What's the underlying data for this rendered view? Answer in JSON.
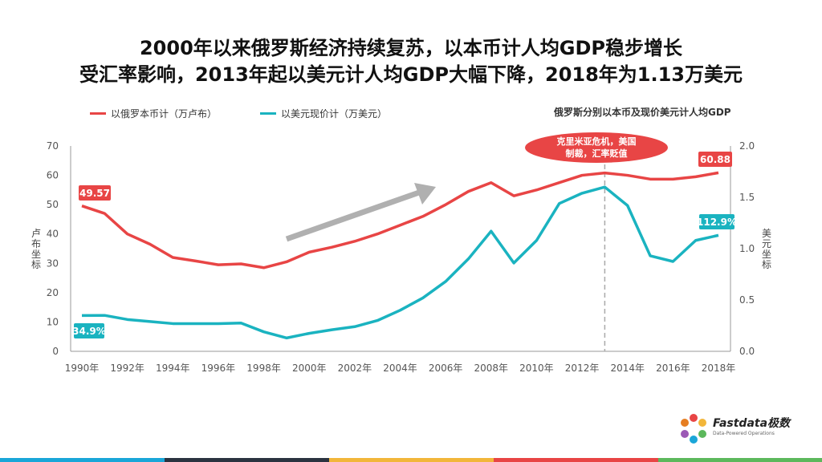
{
  "header": {
    "title_line1": "2000年以来俄罗斯经济持续复苏，以本币计人均GDP稳步增长",
    "title_line2": "受汇率影响，2013年起以美元计人均GDP大幅下降，2018年为1.13万美元"
  },
  "legend": {
    "series1": "以俄罗本币计（万卢布）",
    "series2": "以美元现价计（万美元）"
  },
  "chart_title": "俄罗斯分别以本币及现价美元计人均GDP",
  "left_axis_title": "卢布坐标",
  "right_axis_title": "美元坐标",
  "annotation": {
    "line1": "克里米亚危机，美国",
    "line2": "制裁，汇率贬值"
  },
  "colors": {
    "series1": "#e84545",
    "series2": "#1ab3c0",
    "arrow": "#b0b0b0",
    "annotation_bg": "#e84545",
    "bar": [
      "#1aa6d8",
      "#2b3340",
      "#f2b63a",
      "#e84545",
      "#5cb85c"
    ]
  },
  "logo": {
    "name": "Fastdata极数",
    "tagline": "Data-Powered Operations"
  },
  "chart_data": {
    "type": "line",
    "x": [
      1990,
      1991,
      1992,
      1993,
      1994,
      1995,
      1996,
      1997,
      1998,
      1999,
      2000,
      2001,
      2002,
      2003,
      2004,
      2005,
      2006,
      2007,
      2008,
      2009,
      2010,
      2011,
      2012,
      2013,
      2014,
      2015,
      2016,
      2017,
      2018
    ],
    "x_tick_labels": [
      "1990年",
      "1992年",
      "1994年",
      "1996年",
      "1998年",
      "2000年",
      "2002年",
      "2004年",
      "2006年",
      "2008年",
      "2010年",
      "2012年",
      "2014年",
      "2016年",
      "2018年"
    ],
    "x_tick_values": [
      1990,
      1992,
      1994,
      1996,
      1998,
      2000,
      2002,
      2004,
      2006,
      2008,
      2010,
      2012,
      2014,
      2016,
      2018
    ],
    "y_left": {
      "min": 0,
      "max": 70,
      "ticks": [
        "0",
        "10",
        "20",
        "30",
        "40",
        "50",
        "60",
        "70"
      ],
      "tick_values": [
        0,
        10,
        20,
        30,
        40,
        50,
        60,
        70
      ]
    },
    "y_right": {
      "min": 0,
      "max": 2.0,
      "ticks": [
        "0.0",
        "0.5",
        "1.0",
        "1.5",
        "2.0"
      ],
      "tick_values": [
        0,
        0.5,
        1.0,
        1.5,
        2.0
      ]
    },
    "series": [
      {
        "axis": "left",
        "values": [
          49.57,
          47,
          40,
          36.5,
          32,
          30.8,
          29.5,
          29.8,
          28.5,
          30.5,
          33.8,
          35.5,
          37.5,
          40,
          43,
          46,
          50,
          54.5,
          57.5,
          53,
          55,
          57.5,
          60,
          60.8,
          60,
          58.7,
          58.7,
          59.5,
          60.88
        ]
      },
      {
        "axis": "right",
        "values": [
          0.349,
          0.35,
          0.31,
          0.29,
          0.27,
          0.27,
          0.27,
          0.275,
          0.19,
          0.13,
          0.175,
          0.21,
          0.24,
          0.3,
          0.4,
          0.52,
          0.68,
          0.9,
          1.17,
          0.86,
          1.08,
          1.44,
          1.54,
          1.6,
          1.42,
          0.93,
          0.875,
          1.08,
          1.13
        ]
      }
    ],
    "data_labels": {
      "series1_start": "49.57",
      "series1_end": "60.88",
      "series2_start": "34.9%",
      "series2_end": "112.9%"
    },
    "reference_line_x": 2013,
    "grid": false
  }
}
